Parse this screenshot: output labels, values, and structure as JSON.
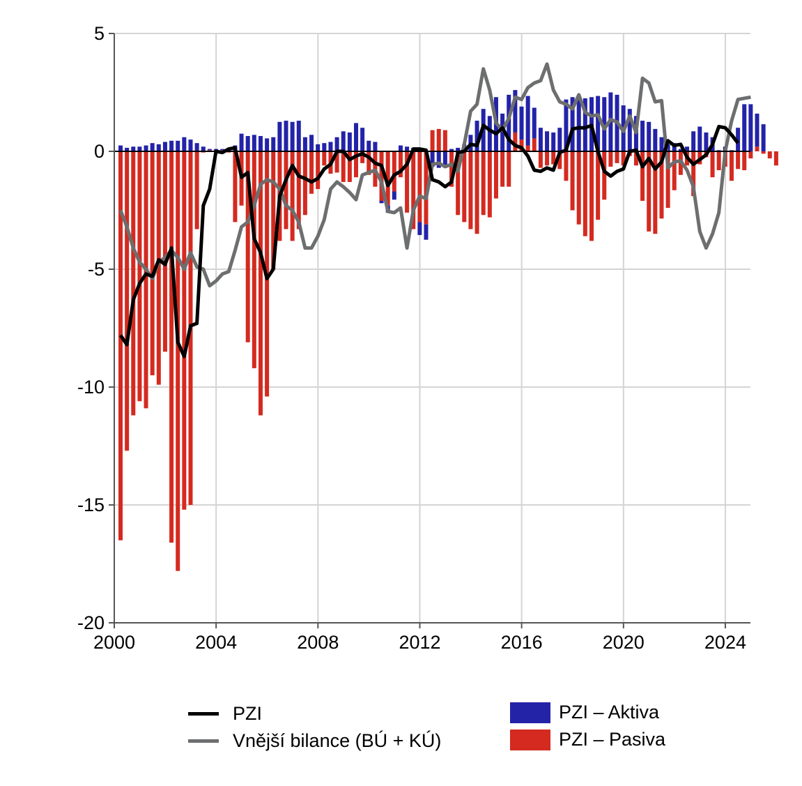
{
  "chart_data": {
    "type": "bar+line",
    "title": "",
    "xlabel": "",
    "ylabel": "",
    "xlim": [
      2000,
      2025
    ],
    "ylim": [
      -20,
      5
    ],
    "yticks": [
      5,
      0,
      -5,
      -10,
      -15,
      -20
    ],
    "ytick_labels": [
      "5",
      "0",
      "-5",
      "-10",
      "-15",
      "-20"
    ],
    "xticks": [
      2000,
      2004,
      2008,
      2012,
      2016,
      2020,
      2024
    ],
    "xtick_labels": [
      "2000",
      "2004",
      "2008",
      "2012",
      "2016",
      "2020",
      "2024"
    ],
    "grid": true,
    "legend_position": "bottom",
    "x_start": 2000.0,
    "x_step": 0.25,
    "series": [
      {
        "name": "PZI – Aktiva",
        "type": "bar",
        "stacked": true,
        "color": "#2323a8",
        "values": [
          0.25,
          0.15,
          0.2,
          0.2,
          0.25,
          0.35,
          0.3,
          0.4,
          0.45,
          0.45,
          0.6,
          0.5,
          0.35,
          0.2,
          0.05,
          0.05,
          0.05,
          0.1,
          0.25,
          0.75,
          0.65,
          0.7,
          0.65,
          0.55,
          0.6,
          1.25,
          1.3,
          1.25,
          1.3,
          0.6,
          0.7,
          0.3,
          0.35,
          0.4,
          0.6,
          0.85,
          0.8,
          1.2,
          1.0,
          0.45,
          0.4,
          -0.1,
          -0.3,
          -0.35,
          0.25,
          0.2,
          0.15,
          -0.55,
          -0.65,
          -0.65,
          -0.7,
          -0.6,
          0.1,
          0.15,
          0.3,
          0.7,
          1.3,
          1.8,
          1.5,
          2.3,
          1.6,
          2.4,
          1.8,
          1.4,
          2.1,
          1.3,
          1.0,
          0.85,
          0.8,
          1.0,
          2.2,
          2.3,
          2.35,
          2.25,
          2.3,
          2.35,
          2.3,
          2.5,
          2.4,
          1.95,
          1.8,
          1.5,
          1.3,
          1.25,
          0.95,
          0.6,
          0.3,
          0.35,
          0.1,
          0.2,
          0.85,
          1.05,
          0.8,
          0.6,
          0.05,
          0.2,
          0.05,
          1.0,
          2.0,
          2.0,
          1.4,
          1.15
        ],
        "negative_part_index_note": ""
      },
      {
        "name": "PZI – Pasiva",
        "type": "bar",
        "stacked": true,
        "color": "#d42a20",
        "values": [
          -16.5,
          -12.7,
          -11.2,
          -10.6,
          -10.9,
          -9.5,
          -9.9,
          -8.5,
          -16.6,
          -17.8,
          -15.2,
          -15.0,
          -3.3,
          -0.05,
          0.05,
          0.05,
          0.05,
          -0.05,
          -3.0,
          -2.3,
          -8.1,
          -9.2,
          -11.2,
          -10.4,
          -5.0,
          -3.8,
          -3.3,
          -3.8,
          -3.3,
          -2.7,
          -1.8,
          -1.6,
          -0.6,
          -0.95,
          -0.9,
          -1.3,
          -1.3,
          -1.1,
          -0.5,
          -1.0,
          -1.5,
          -2.1,
          -2.3,
          -1.7,
          -1.1,
          -2.6,
          -3.3,
          -3.0,
          -3.1,
          0.9,
          0.95,
          0.9,
          -1.5,
          -2.7,
          -3.0,
          -3.3,
          -3.5,
          -2.7,
          -2.8,
          -2.0,
          -1.5,
          -1.5,
          0.8,
          0.5,
          0.25,
          0.55,
          -0.7,
          -0.6,
          -0.55,
          -0.75,
          -1.25,
          -2.5,
          -3.1,
          -3.6,
          -3.8,
          -2.9,
          -2.05,
          -0.65,
          -0.5,
          -0.6,
          -0.2,
          -0.6,
          -2.1,
          -3.4,
          -3.5,
          -2.85,
          -2.4,
          -1.65,
          -1.0,
          -0.6,
          -1.9,
          -0.55,
          -0.25,
          -1.1,
          -0.8,
          -0.65,
          -1.25,
          -0.75,
          -0.8,
          -0.3,
          0.2,
          -0.1,
          -0.3,
          -0.6
        ]
      },
      {
        "name": "PZI",
        "type": "line",
        "color": "#000000",
        "values": [
          -7.8,
          -8.2,
          -6.3,
          -5.6,
          -5.2,
          -5.3,
          -4.6,
          -4.8,
          -4.1,
          -8.1,
          -8.7,
          -7.4,
          -7.3,
          -2.3,
          -1.6,
          0.0,
          -0.05,
          0.1,
          0.15,
          -1.1,
          -0.9,
          -3.7,
          -4.3,
          -5.4,
          -5.0,
          -1.9,
          -1.2,
          -0.6,
          -1.05,
          -1.15,
          -1.3,
          -1.15,
          -0.75,
          -0.55,
          0.0,
          0.0,
          -0.35,
          -0.2,
          -0.1,
          -0.25,
          -0.5,
          -0.6,
          -1.45,
          -1.0,
          -0.85,
          -0.55,
          0.1,
          0.1,
          0.05,
          -1.2,
          -1.3,
          -1.5,
          -1.3,
          -0.05,
          0.0,
          0.3,
          0.25,
          1.1,
          0.9,
          0.75,
          1.0,
          0.5,
          0.25,
          0.15,
          -0.2,
          -0.8,
          -0.85,
          -0.7,
          -0.8,
          -0.05,
          0.05,
          0.95,
          1.0,
          1.0,
          1.1,
          0.0,
          -0.85,
          -1.05,
          -0.85,
          -0.75,
          0.0,
          0.05,
          -0.65,
          -0.3,
          -0.75,
          -0.45,
          0.45,
          0.25,
          0.3,
          -0.25,
          -0.55,
          -0.35,
          -0.15,
          0.3,
          1.05,
          1.0,
          0.7,
          0.35
        ],
        "note": "quarterly, starting 2000Q1"
      },
      {
        "name": "Vnější bilance (BÚ + KÚ)",
        "type": "line",
        "color": "#6d6e6f",
        "values": [
          -2.5,
          -3.2,
          -4.1,
          -4.7,
          -5.0,
          -5.4,
          -4.7,
          -4.5,
          -4.2,
          -4.5,
          -5.0,
          -4.3,
          -4.9,
          -5.0,
          -5.7,
          -5.5,
          -5.2,
          -5.1,
          -4.2,
          -3.2,
          -3.0,
          -2.3,
          -1.4,
          -1.2,
          -1.3,
          -1.6,
          -2.3,
          -2.5,
          -3.0,
          -4.1,
          -4.1,
          -3.6,
          -2.9,
          -1.6,
          -1.3,
          -1.5,
          -1.75,
          -2.05,
          -1.0,
          -0.9,
          -0.8,
          -1.3,
          -2.55,
          -2.6,
          -2.4,
          -4.1,
          -2.5,
          -1.9,
          -2.0,
          -0.55,
          -0.5,
          -0.65,
          -0.55,
          -0.85,
          0.3,
          1.7,
          2.0,
          3.5,
          2.6,
          1.2,
          0.9,
          1.4,
          2.3,
          2.2,
          2.7,
          2.9,
          3.0,
          3.7,
          2.6,
          2.1,
          2.0,
          1.8,
          2.4,
          1.65,
          1.5,
          1.55,
          0.95,
          1.35,
          1.25,
          0.85,
          1.5,
          0.8,
          3.1,
          2.9,
          2.1,
          2.15,
          -0.7,
          -0.45,
          -0.4,
          -0.8,
          -1.5,
          -3.4,
          -4.1,
          -3.5,
          -2.6,
          0.0,
          1.3,
          2.2,
          2.25,
          2.3
        ],
        "note": "quarterly, starting 2000Q1"
      }
    ]
  },
  "legend": {
    "items": [
      {
        "label": "PZI",
        "kind": "line",
        "color": "#000000"
      },
      {
        "label": "Vnější bilance (BÚ + KÚ)",
        "kind": "line",
        "color": "#6d6e6f"
      },
      {
        "label": "PZI – Aktiva",
        "kind": "box",
        "color": "#2323a8"
      },
      {
        "label": "PZI – Pasiva",
        "kind": "box",
        "color": "#d42a20"
      }
    ]
  }
}
